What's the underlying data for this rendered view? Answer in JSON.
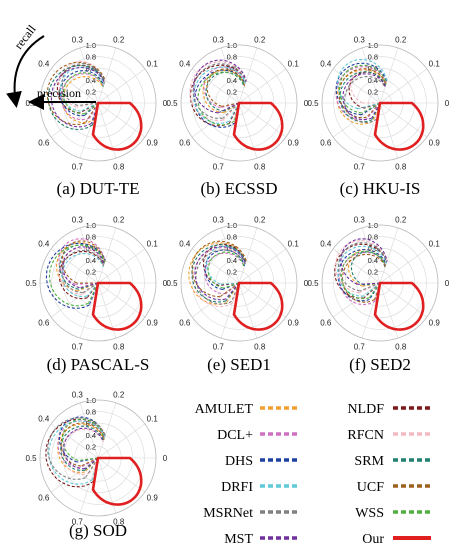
{
  "annotations": {
    "recall": "recall",
    "precision": "precision"
  },
  "legend": [
    {
      "name": "AMULET",
      "color": "#f0a030"
    },
    {
      "name": "NLDF",
      "color": "#7a1a1a"
    },
    {
      "name": "DCL+",
      "color": "#d070c0"
    },
    {
      "name": "RFCN",
      "color": "#f4b8c0"
    },
    {
      "name": "DHS",
      "color": "#2040a0"
    },
    {
      "name": "SRM",
      "color": "#208070"
    },
    {
      "name": "DRFI",
      "color": "#60c8d8"
    },
    {
      "name": "UCF",
      "color": "#a06020"
    },
    {
      "name": "MSRNet",
      "color": "#808080"
    },
    {
      "name": "WSS",
      "color": "#50b040"
    },
    {
      "name": "MST",
      "color": "#7030a0"
    },
    {
      "name": "Our",
      "color": "#e02020"
    }
  ],
  "chart_data": [
    {
      "type": "polar-line",
      "caption": "(a) DUT-TE",
      "theta_ticks": [
        "0",
        "0.1",
        "0.2",
        "0.3",
        "0.4",
        "0.5",
        "0.6",
        "0.7",
        "0.8",
        "0.9"
      ],
      "r_ticks": [
        "0.2",
        "0.4",
        "0.6",
        "0.8",
        "1.0"
      ],
      "rlim": [
        0,
        1
      ]
    },
    {
      "type": "polar-line",
      "caption": "(b) ECSSD",
      "theta_ticks": [
        "0",
        "0.1",
        "0.2",
        "0.3",
        "0.4",
        "0.5",
        "0.6",
        "0.7",
        "0.8",
        "0.9"
      ],
      "r_ticks": [
        "0.2",
        "0.4",
        "0.6",
        "0.8",
        "1.0"
      ],
      "rlim": [
        0,
        1
      ]
    },
    {
      "type": "polar-line",
      "caption": "(c) HKU-IS",
      "theta_ticks": [
        "0",
        "0.1",
        "0.2",
        "0.3",
        "0.4",
        "0.5",
        "0.6",
        "0.7",
        "0.8",
        "0.9"
      ],
      "r_ticks": [
        "0.2",
        "0.4",
        "0.6",
        "0.8",
        "1.0"
      ],
      "rlim": [
        0,
        1
      ]
    },
    {
      "type": "polar-line",
      "caption": "(d) PASCAL-S",
      "theta_ticks": [
        "0",
        "0.1",
        "0.2",
        "0.3",
        "0.4",
        "0.5",
        "0.6",
        "0.7",
        "0.8",
        "0.9"
      ],
      "r_ticks": [
        "0.2",
        "0.4",
        "0.6",
        "0.8",
        "1.0"
      ],
      "rlim": [
        0,
        1
      ]
    },
    {
      "type": "polar-line",
      "caption": "(e) SED1",
      "theta_ticks": [
        "0",
        "0.1",
        "0.2",
        "0.3",
        "0.4",
        "0.5",
        "0.6",
        "0.7",
        "0.8",
        "0.9"
      ],
      "r_ticks": [
        "0.2",
        "0.4",
        "0.6",
        "0.8",
        "1.0"
      ],
      "rlim": [
        0,
        1
      ]
    },
    {
      "type": "polar-line",
      "caption": "(f) SED2",
      "theta_ticks": [
        "0",
        "0.1",
        "0.2",
        "0.3",
        "0.4",
        "0.5",
        "0.6",
        "0.7",
        "0.8",
        "0.9"
      ],
      "r_ticks": [
        "0.2",
        "0.4",
        "0.6",
        "0.8",
        "1.0"
      ],
      "rlim": [
        0,
        1
      ]
    },
    {
      "type": "polar-line",
      "caption": "(g) SOD",
      "theta_ticks": [
        "0",
        "0.1",
        "0.2",
        "0.3",
        "0.4",
        "0.5",
        "0.6",
        "0.7",
        "0.8",
        "0.9"
      ],
      "r_ticks": [
        "0.2",
        "0.4",
        "0.6",
        "0.8",
        "1.0"
      ],
      "rlim": [
        0,
        1
      ]
    }
  ]
}
